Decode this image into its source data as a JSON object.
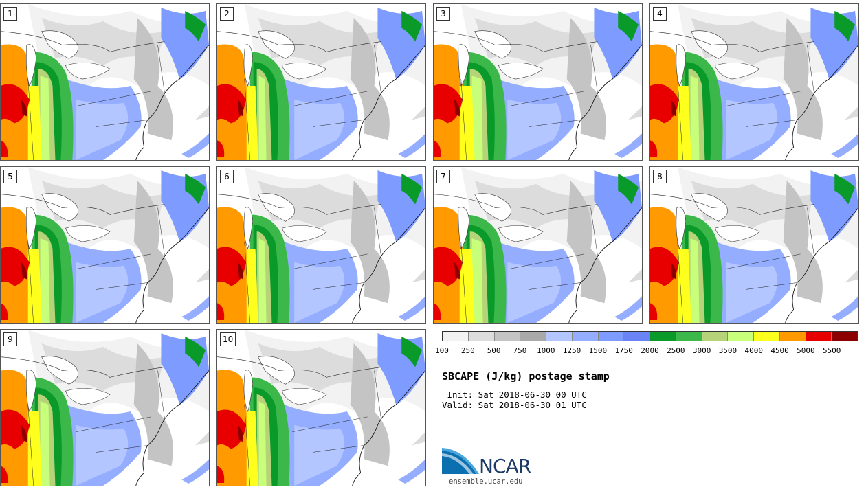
{
  "panels": [
    {
      "label": "1"
    },
    {
      "label": "2"
    },
    {
      "label": "3"
    },
    {
      "label": "4"
    },
    {
      "label": "5"
    },
    {
      "label": "6"
    },
    {
      "label": "7"
    },
    {
      "label": "8"
    },
    {
      "label": "9"
    },
    {
      "label": "10"
    }
  ],
  "colorbar": {
    "colors": [
      "#f2f2f2",
      "#dcdcdc",
      "#c4c4c4",
      "#a9a9a9",
      "#b3c6ff",
      "#94adff",
      "#7e9bff",
      "#6b84f5",
      "#0a9a2a",
      "#3cb84a",
      "#b6d37a",
      "#c8ff7a",
      "#ffff1e",
      "#ff9b00",
      "#e80000",
      "#8c0000"
    ],
    "tick_labels": [
      "100",
      "250",
      "500",
      "750",
      "1000",
      "1250",
      "1500",
      "1750",
      "2000",
      "2500",
      "3000",
      "3500",
      "4000",
      "4500",
      "5000",
      "5500"
    ]
  },
  "title": "SBCAPE (J/kg) postage stamp",
  "init_text": " Init: Sat 2018-06-30 00 UTC",
  "valid_text": "Valid: Sat 2018-06-30 01 UTC",
  "logo_text": "NCAR",
  "url": "ensemble.ucar.edu"
}
